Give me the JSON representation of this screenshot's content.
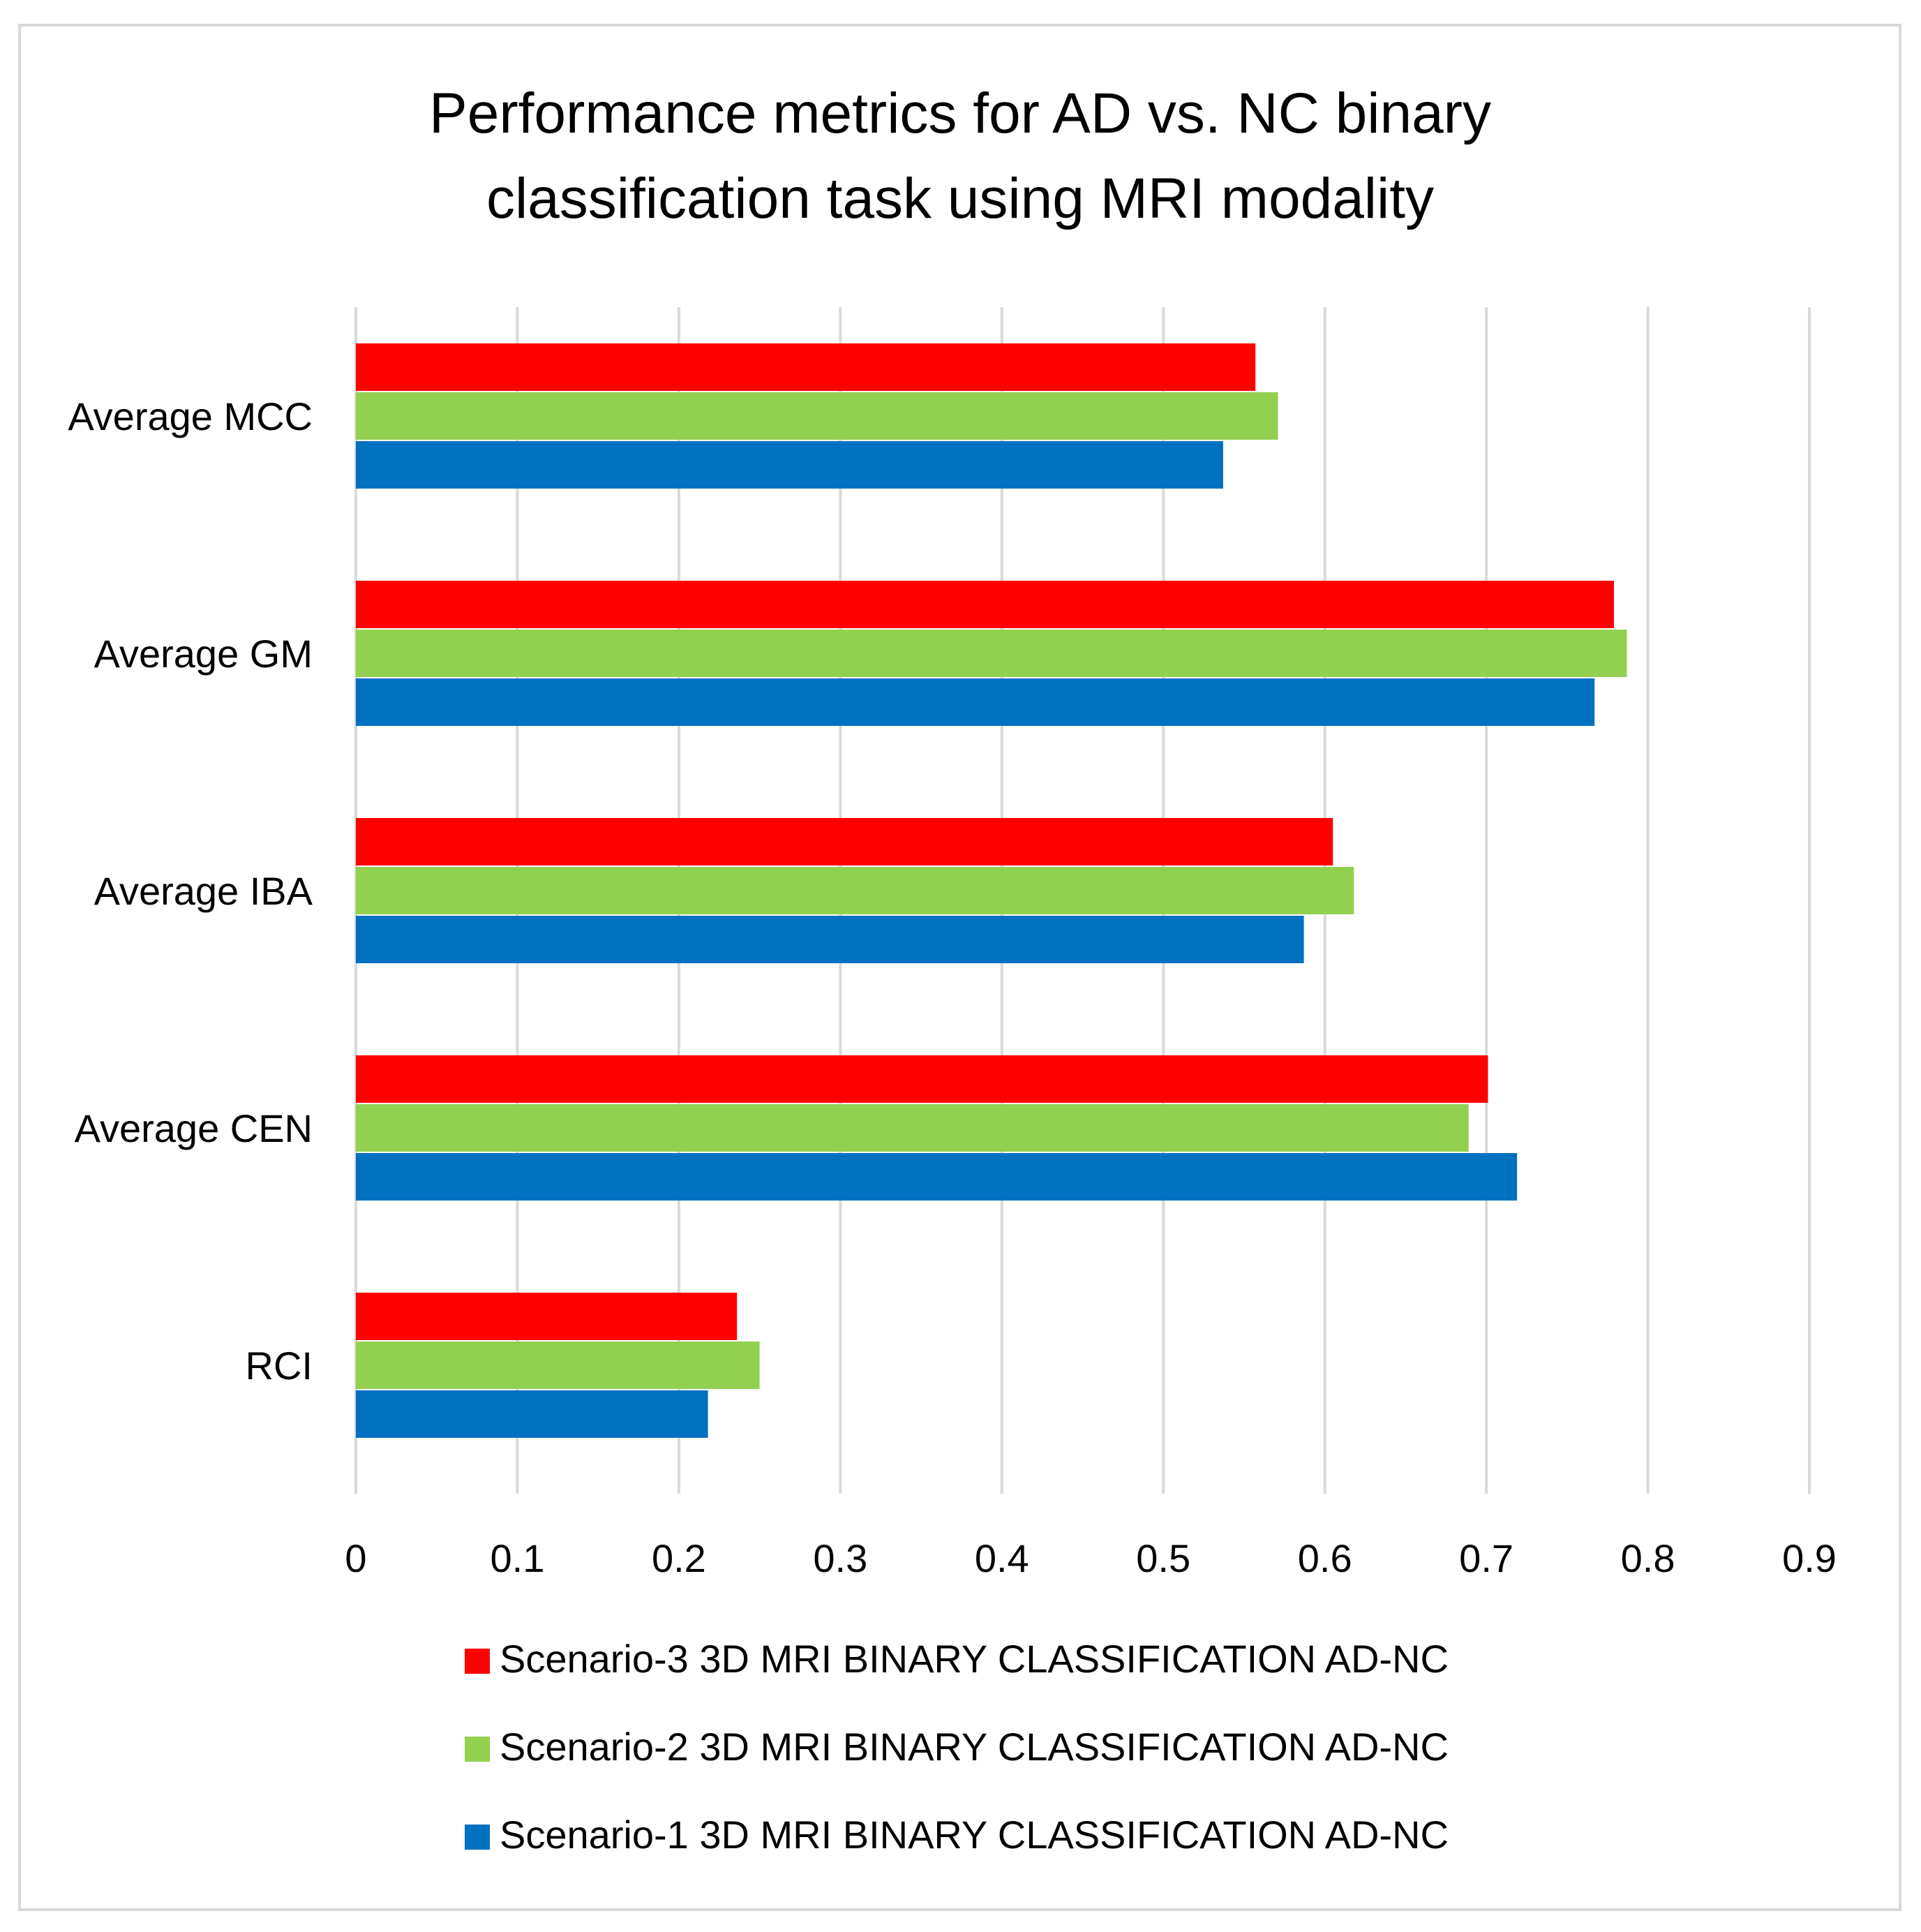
{
  "chart_data": {
    "type": "bar",
    "orientation": "horizontal",
    "title": "Performance  metrics for AD vs. NC binary classification task using MRI modality",
    "title_lines": [
      "Performance  metrics for AD vs. NC binary",
      "classification task using MRI modality"
    ],
    "categories": [
      "Average MCC",
      "Average GM",
      "Average IBA",
      "Average CEN",
      "RCI"
    ],
    "series": [
      {
        "name": "Scenario-3 3D MRI BINARY CLASSIFICATION AD-NC",
        "color": "#ff0000",
        "values": [
          0.557,
          0.779,
          0.605,
          0.701,
          0.236
        ]
      },
      {
        "name": "Scenario-2 3D MRI BINARY CLASSIFICATION AD-NC",
        "color": "#92d050",
        "values": [
          0.571,
          0.787,
          0.618,
          0.689,
          0.25
        ]
      },
      {
        "name": "Scenario-1 3D MRI BINARY CLASSIFICATION AD-NC",
        "color": "#0070c0",
        "values": [
          0.537,
          0.767,
          0.587,
          0.719,
          0.218
        ]
      }
    ],
    "xlim": [
      0,
      0.9
    ],
    "xticks": [
      0,
      0.1,
      0.2,
      0.3,
      0.4,
      0.5,
      0.6,
      0.7,
      0.8,
      0.9
    ],
    "xtick_labels": [
      "0",
      "0.1",
      "0.2",
      "0.3",
      "0.4",
      "0.5",
      "0.6",
      "0.7",
      "0.8",
      "0.9"
    ],
    "xlabel": "",
    "ylabel": "",
    "grid": "vertical",
    "legend_position": "bottom"
  }
}
